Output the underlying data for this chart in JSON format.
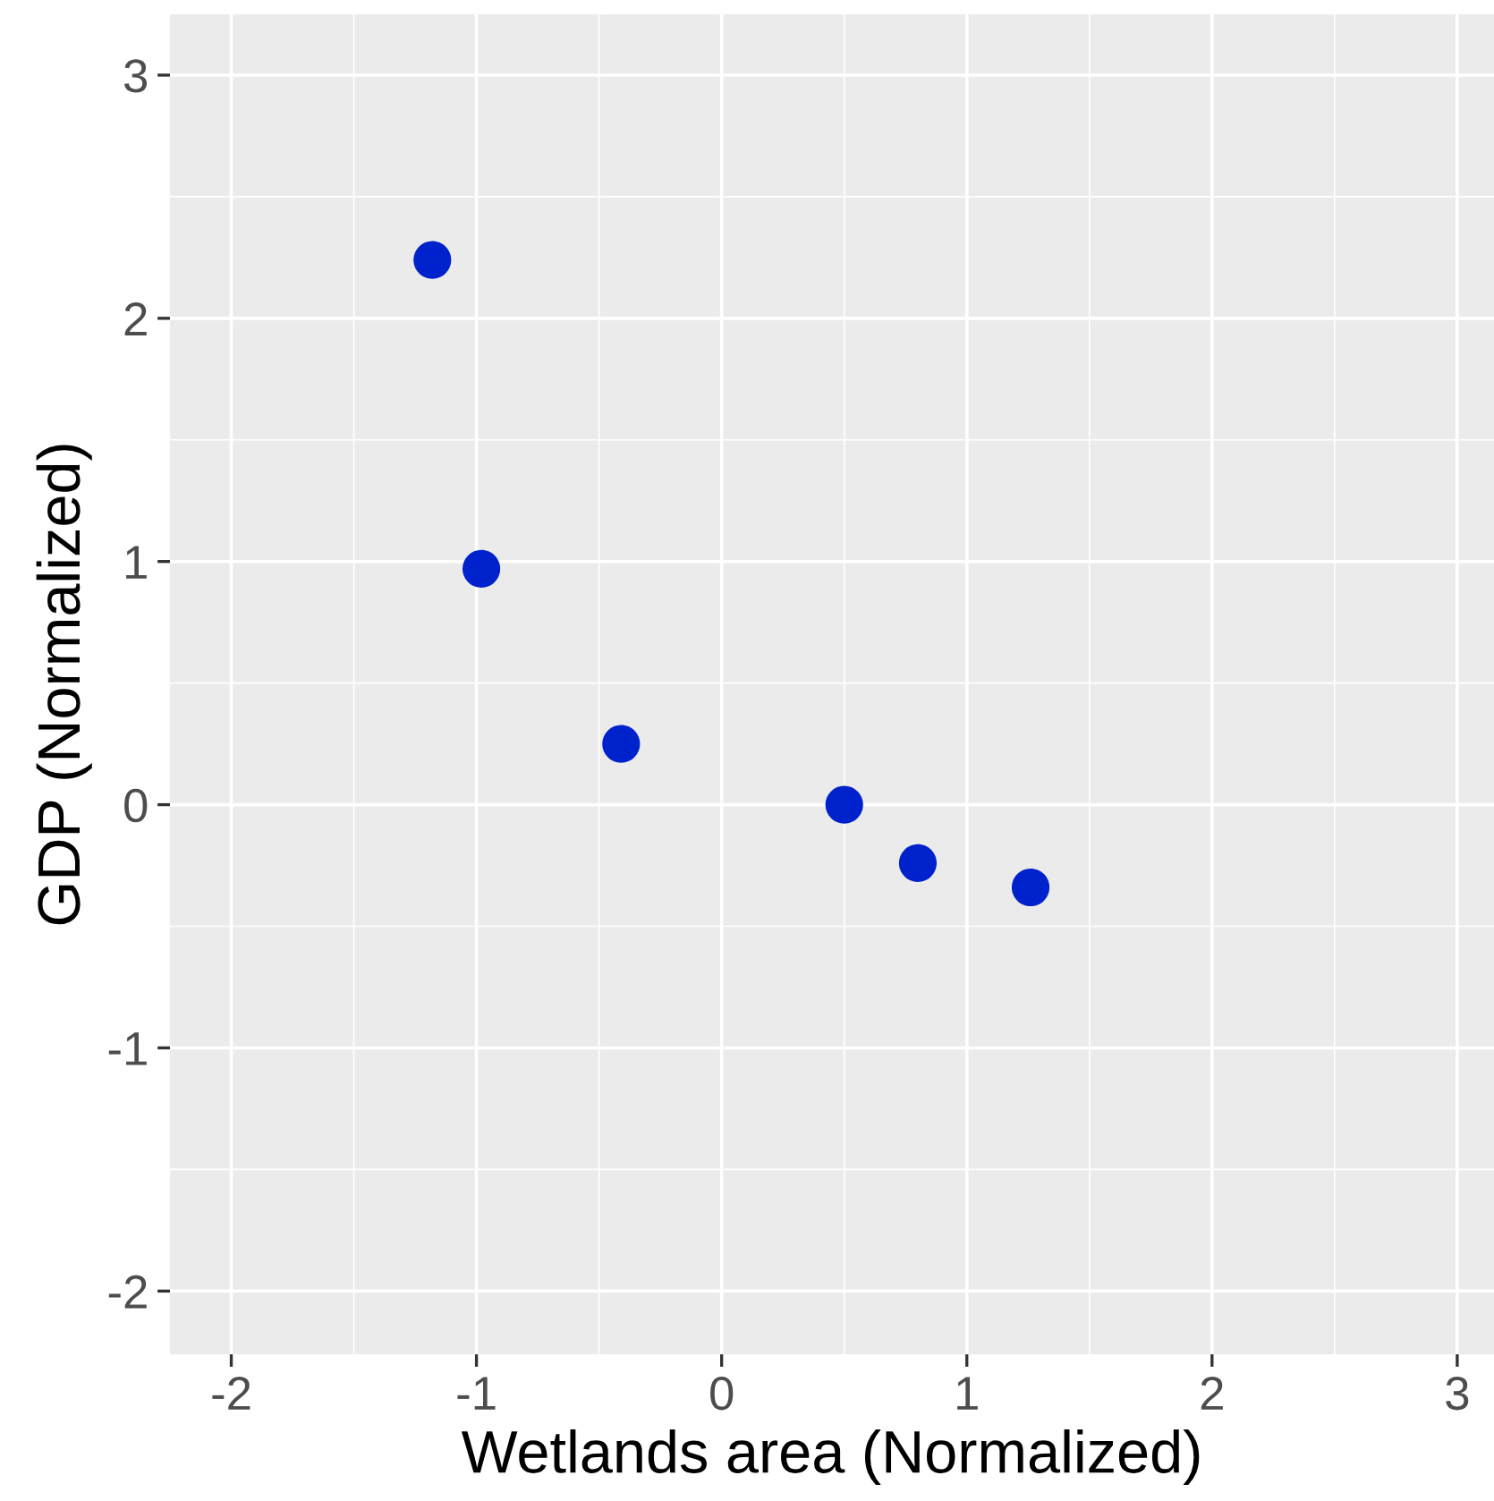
{
  "chart_data": {
    "type": "scatter",
    "xlabel": "Wetlands area (Normalized)",
    "ylabel": "GDP (Normalized)",
    "x": [
      -1.18,
      -0.98,
      -0.41,
      0.5,
      0.8,
      1.26
    ],
    "series": [
      {
        "color": "#0022cc",
        "values": [
          2.24,
          0.97,
          0.25,
          0.0,
          -0.24,
          -0.34
        ]
      }
    ],
    "xlim": [
      -2.25,
      3.15
    ],
    "ylim": [
      -2.26,
      3.25
    ],
    "xticks": [
      {
        "value": -2,
        "label": "-2"
      },
      {
        "value": -1,
        "label": "-1"
      },
      0,
      1,
      2,
      3
    ],
    "yticks": [
      {
        "value": -2,
        "label": "-2"
      },
      {
        "value": -1,
        "label": "-1"
      },
      0,
      1,
      2,
      3
    ],
    "grid": true,
    "marker": "circle"
  }
}
